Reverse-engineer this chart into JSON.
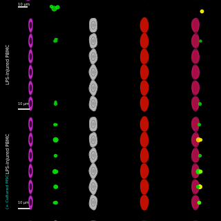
{
  "fig_width": 3.2,
  "fig_height": 3.2,
  "dpi": 100,
  "bg_color": "#000000",
  "label_bg": "#000000",
  "row1_label": "LPS-injured PBMC",
  "row2_label_white": "LPS-injured PBMC",
  "row2_label_cyan": "(+ Cultured MSC)",
  "scale_bar_text": "10 μm",
  "cell_magenta_fill": "#cc22cc",
  "cell_magenta_edge": "#dd44dd",
  "cell_red_fill": "#cc0000",
  "cell_bf_fill": "#cccccc",
  "cell_bf_edge": "#888888",
  "green_color": "#00ee00",
  "yellow_color": "#ffee00",
  "n_cells_row1": 6,
  "n_cells_row2": 6,
  "white_divider": "#ffffff"
}
